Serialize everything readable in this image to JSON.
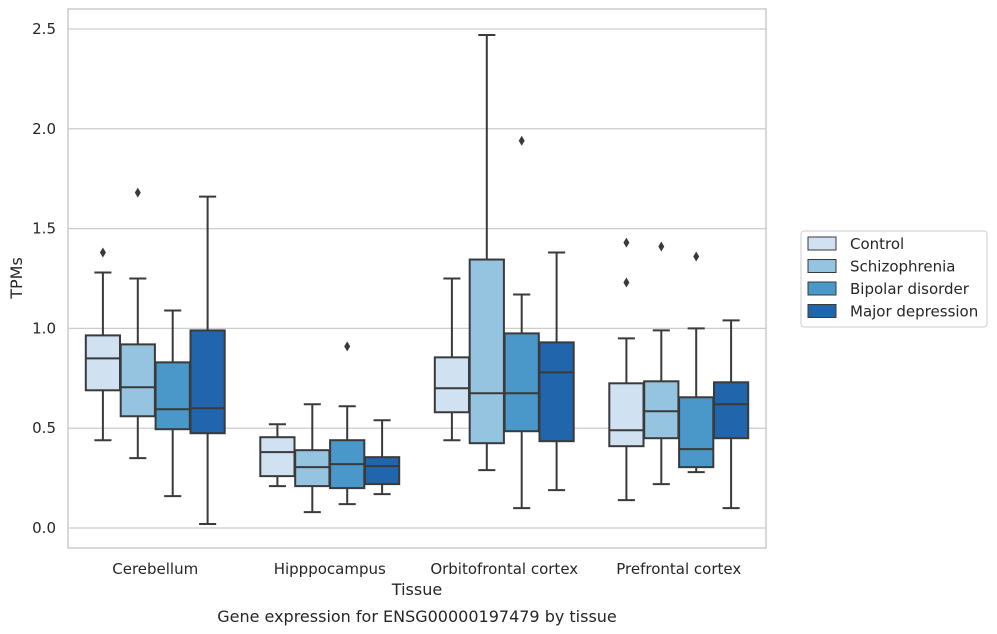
{
  "chart_data": {
    "type": "box",
    "title": "",
    "caption": "Gene expression for ENSG00000197479 by tissue",
    "xlabel": "Tissue",
    "ylabel": "TPMs",
    "ylim": [
      -0.1,
      2.6
    ],
    "yticks": [
      0.0,
      0.5,
      1.0,
      1.5,
      2.0,
      2.5
    ],
    "ytick_labels": [
      "0.0",
      "0.5",
      "1.0",
      "1.5",
      "2.0",
      "2.5"
    ],
    "categories": [
      "Cerebellum",
      "Hipppocampus",
      "Orbitofrontal cortex",
      "Prefrontal cortex"
    ],
    "grid": "horizontal",
    "legend_position": "right",
    "series": [
      {
        "name": "Control",
        "color": "#d0e1f2",
        "boxes": [
          {
            "whislo": 0.44,
            "q1": 0.69,
            "med": 0.85,
            "q3": 0.965,
            "whishi": 1.28,
            "fliers": [
              1.38
            ]
          },
          {
            "whislo": 0.21,
            "q1": 0.26,
            "med": 0.38,
            "q3": 0.455,
            "whishi": 0.52,
            "fliers": []
          },
          {
            "whislo": 0.44,
            "q1": 0.58,
            "med": 0.7,
            "q3": 0.855,
            "whishi": 1.25,
            "fliers": []
          },
          {
            "whislo": 0.14,
            "q1": 0.41,
            "med": 0.49,
            "q3": 0.725,
            "whishi": 0.95,
            "fliers": [
              1.23,
              1.43
            ]
          }
        ]
      },
      {
        "name": "Schizophrenia",
        "color": "#94c4df",
        "boxes": [
          {
            "whislo": 0.35,
            "q1": 0.56,
            "med": 0.705,
            "q3": 0.92,
            "whishi": 1.25,
            "fliers": [
              1.68
            ]
          },
          {
            "whislo": 0.08,
            "q1": 0.21,
            "med": 0.305,
            "q3": 0.39,
            "whishi": 0.62,
            "fliers": []
          },
          {
            "whislo": 0.29,
            "q1": 0.425,
            "med": 0.675,
            "q3": 1.345,
            "whishi": 2.47,
            "fliers": []
          },
          {
            "whislo": 0.22,
            "q1": 0.45,
            "med": 0.585,
            "q3": 0.735,
            "whishi": 0.99,
            "fliers": [
              1.41
            ]
          }
        ]
      },
      {
        "name": "Bipolar disorder",
        "color": "#4a98c9",
        "boxes": [
          {
            "whislo": 0.16,
            "q1": 0.495,
            "med": 0.595,
            "q3": 0.83,
            "whishi": 1.09,
            "fliers": []
          },
          {
            "whislo": 0.12,
            "q1": 0.2,
            "med": 0.32,
            "q3": 0.44,
            "whishi": 0.61,
            "fliers": [
              0.91
            ]
          },
          {
            "whislo": 0.1,
            "q1": 0.485,
            "med": 0.675,
            "q3": 0.975,
            "whishi": 1.17,
            "fliers": [
              1.94
            ]
          },
          {
            "whislo": 0.28,
            "q1": 0.305,
            "med": 0.395,
            "q3": 0.655,
            "whishi": 1.0,
            "fliers": [
              1.36
            ]
          }
        ]
      },
      {
        "name": "Major depression",
        "color": "#2166ac",
        "boxes": [
          {
            "whislo": 0.02,
            "q1": 0.475,
            "med": 0.6,
            "q3": 0.99,
            "whishi": 1.66,
            "fliers": []
          },
          {
            "whislo": 0.17,
            "q1": 0.22,
            "med": 0.31,
            "q3": 0.355,
            "whishi": 0.54,
            "fliers": []
          },
          {
            "whislo": 0.19,
            "q1": 0.435,
            "med": 0.78,
            "q3": 0.93,
            "whishi": 1.38,
            "fliers": []
          },
          {
            "whislo": 0.1,
            "q1": 0.45,
            "med": 0.62,
            "q3": 0.73,
            "whishi": 1.04,
            "fliers": []
          }
        ]
      }
    ]
  }
}
